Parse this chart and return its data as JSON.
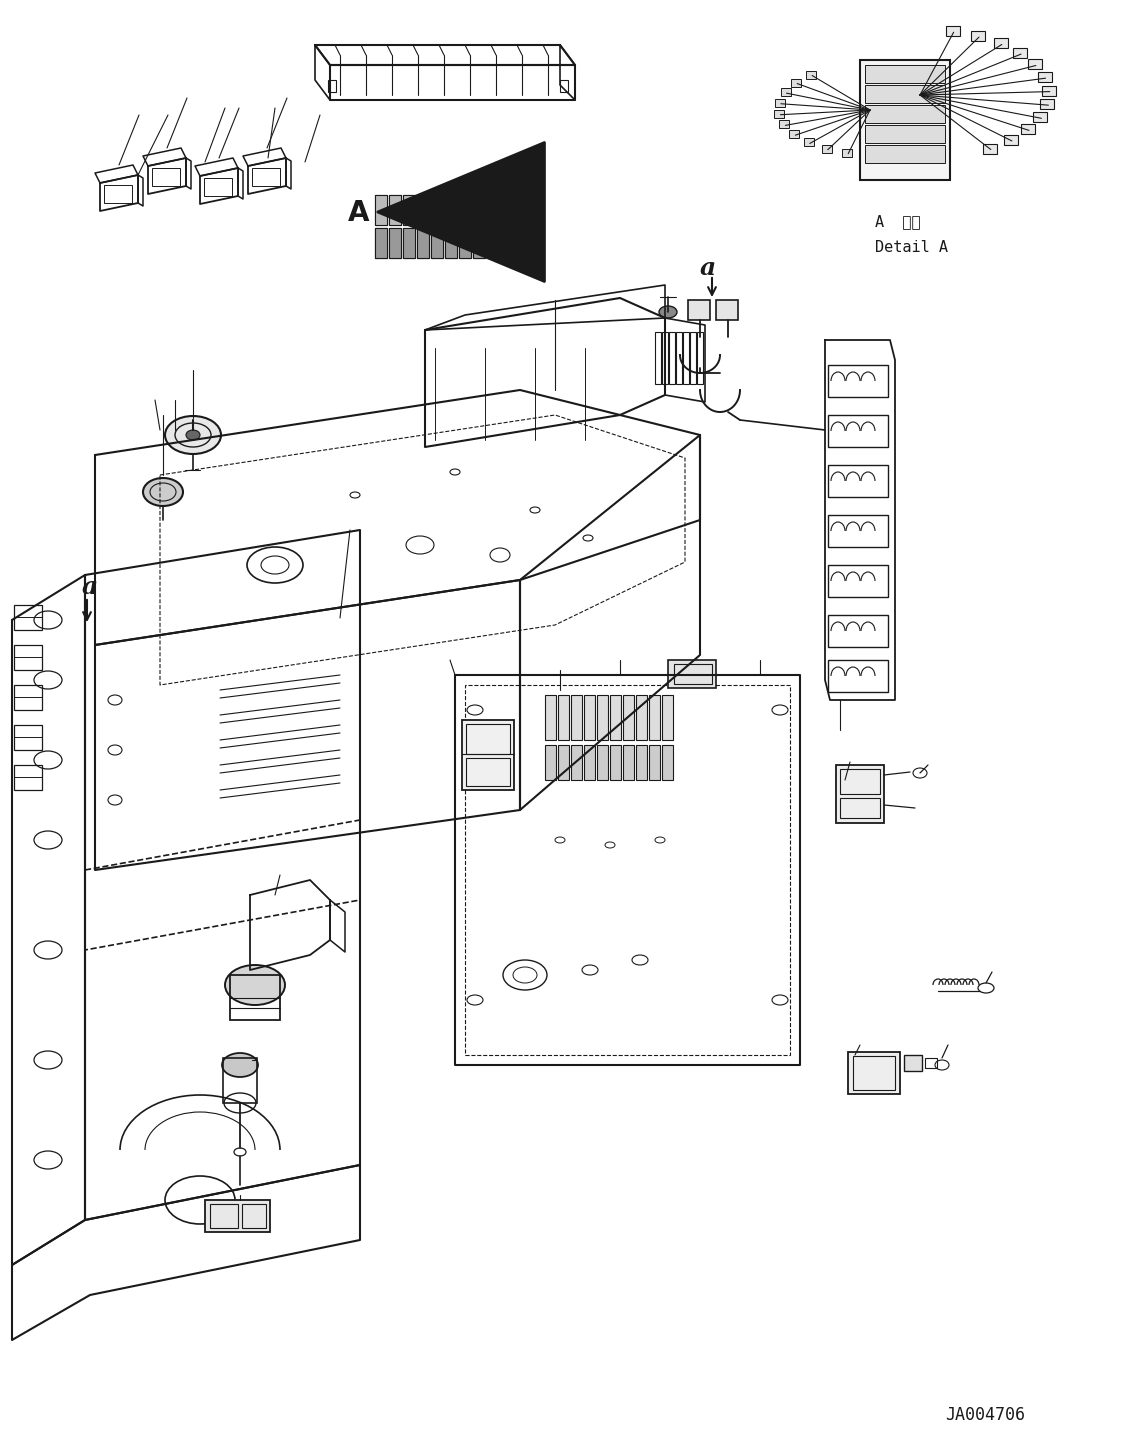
{
  "figsize": [
    11.47,
    14.52
  ],
  "dpi": 100,
  "background_color": "#ffffff",
  "part_number": "JA004706",
  "detail_label_ja": "詳細",
  "detail_label_en": "Detail A",
  "label_a_small": "a",
  "label_A_big": "A"
}
